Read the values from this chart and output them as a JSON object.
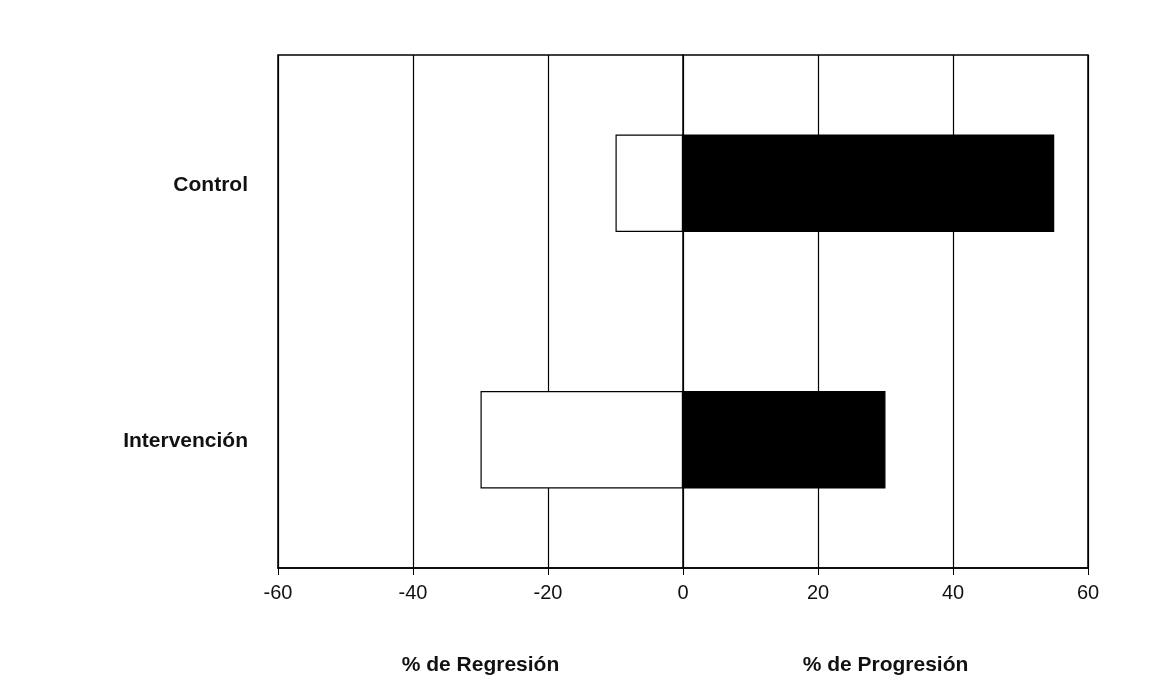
{
  "chart_data": {
    "type": "bar",
    "orientation": "horizontal",
    "stacked": true,
    "categories": [
      "Control",
      "Intervención"
    ],
    "series": [
      {
        "color": "#ffffff",
        "values": [
          -10,
          -30
        ]
      },
      {
        "color": "#000000",
        "values": [
          55,
          30
        ]
      }
    ],
    "xlim": [
      -60,
      60
    ],
    "xticks": [
      -60,
      -40,
      -20,
      0,
      20,
      40,
      60
    ],
    "grid": "x",
    "annotations": [
      "% de Regresión",
      "% de Progresión"
    ]
  }
}
